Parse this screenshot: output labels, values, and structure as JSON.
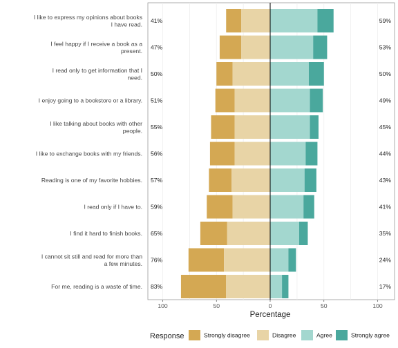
{
  "chart_data": {
    "type": "bar",
    "orientation": "horizontal",
    "stacking": "diverging",
    "xlabel": "Percentage",
    "xticks": [
      100,
      50,
      0,
      50,
      100
    ],
    "xlim": [
      -100,
      100
    ],
    "grid": true,
    "legend": {
      "title": "Response",
      "position": "bottom"
    },
    "colors": {
      "Strongly disagree": "#d4a853",
      "Disagree": "#e8d4a6",
      "Agree": "#a3d7cf",
      "Strongly agree": "#4aa89d"
    },
    "categories": [
      "I like to express my opinions about books I have read.",
      "I feel happy if I receive a book as a present.",
      "I read only to get information that I need.",
      "I enjoy going to a bookstore or a library.",
      "I like talking about books with other people.",
      "I like to exchange books with my friends.",
      "Reading is one of my favorite hobbies.",
      "I read only if I have to.",
      "I find it hard to finish books.",
      "I cannot sit still and read for more than a few minutes.",
      "For me, reading is a waste of time."
    ],
    "series": [
      {
        "name": "Strongly disagree",
        "values": [
          14,
          20,
          15,
          18,
          22,
          23,
          21,
          24,
          25,
          33,
          42
        ]
      },
      {
        "name": "Disagree",
        "values": [
          27,
          27,
          35,
          33,
          33,
          33,
          36,
          35,
          40,
          43,
          41
        ]
      },
      {
        "name": "Agree",
        "values": [
          44,
          40,
          36,
          37,
          37,
          33,
          32,
          31,
          27,
          17,
          11
        ]
      },
      {
        "name": "Strongly agree",
        "values": [
          15,
          13,
          14,
          12,
          8,
          11,
          11,
          10,
          8,
          7,
          6
        ]
      }
    ],
    "left_labels": [
      "41%",
      "47%",
      "50%",
      "51%",
      "55%",
      "56%",
      "57%",
      "59%",
      "65%",
      "76%",
      "83%"
    ],
    "right_labels": [
      "59%",
      "53%",
      "50%",
      "49%",
      "45%",
      "44%",
      "43%",
      "41%",
      "35%",
      "24%",
      "17%"
    ]
  }
}
